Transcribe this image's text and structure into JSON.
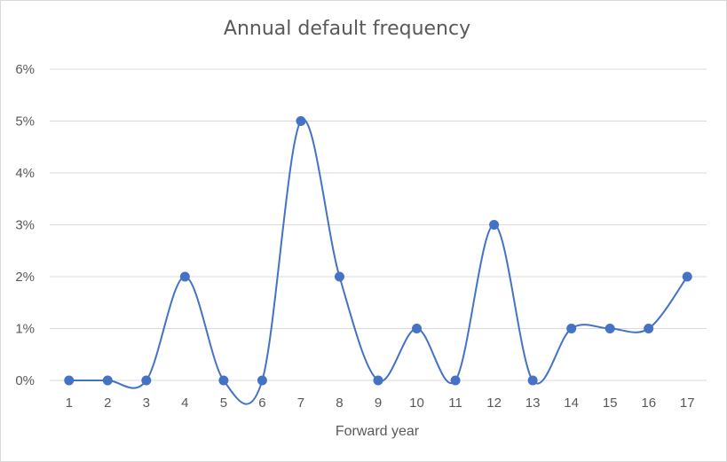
{
  "chart_data": {
    "type": "line",
    "smooth": true,
    "markers": true,
    "title": "Annual default frequency",
    "xlabel": "Forward year",
    "ylabel": "",
    "categories": [
      "1",
      "2",
      "3",
      "4",
      "5",
      "6",
      "7",
      "8",
      "9",
      "10",
      "11",
      "12",
      "13",
      "14",
      "15",
      "16",
      "17"
    ],
    "values": [
      0,
      0,
      0,
      2,
      0,
      0,
      5,
      2,
      0,
      1,
      0,
      3,
      0,
      1,
      1,
      1,
      2
    ],
    "y_unit": "%",
    "ylim": [
      0,
      6
    ],
    "yticks": [
      "0%",
      "1%",
      "2%",
      "3%",
      "4%",
      "5%",
      "6%"
    ],
    "grid": true,
    "legend": "none",
    "line_color": "#4472C4",
    "grid_color": "#d9d9d9"
  }
}
